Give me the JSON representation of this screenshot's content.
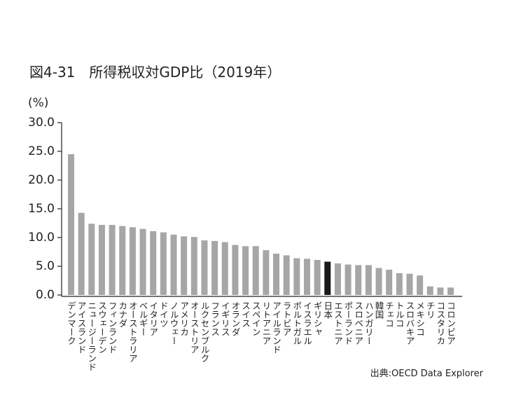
{
  "chart_data": {
    "type": "bar",
    "title": "図4-31　所得税収対GDP比（2019年）",
    "y_label": "(%)",
    "source": "出典:OECD Data Explorer",
    "categories": [
      "デンマーク",
      "アイスランド",
      "ニュージーランド",
      "スウェーデン",
      "フィンランド",
      "カナダ",
      "オーストラリア",
      "ベルギー",
      "イタリア",
      "ドイツ",
      "ノルウェー",
      "アメリカ",
      "オーストリア",
      "ルクセンブルク",
      "フランス",
      "イギリス",
      "オランダ",
      "スイス",
      "スペイン",
      "リトアニア",
      "アイルランド",
      "ラトビア",
      "ポルトガル",
      "イスラエル",
      "ギリシャ",
      "日本",
      "エストニア",
      "ポーランド",
      "スロベニア",
      "ハンガリー",
      "韓国",
      "チェコ",
      "トルコ",
      "スロバキア",
      "メキシコ",
      "チリ",
      "コスタリカ",
      "コロンビア"
    ],
    "values": [
      24.5,
      14.3,
      12.4,
      12.2,
      12.2,
      12.0,
      11.8,
      11.5,
      11.1,
      10.9,
      10.5,
      10.2,
      10.1,
      9.5,
      9.4,
      9.2,
      8.7,
      8.5,
      8.5,
      7.8,
      7.2,
      6.9,
      6.4,
      6.3,
      6.1,
      5.8,
      5.5,
      5.3,
      5.2,
      5.2,
      4.7,
      4.4,
      3.8,
      3.7,
      3.4,
      1.5,
      1.3,
      1.3
    ],
    "colors": [
      "#a6a6a6",
      "#a6a6a6",
      "#a6a6a6",
      "#a6a6a6",
      "#a6a6a6",
      "#a6a6a6",
      "#a6a6a6",
      "#a6a6a6",
      "#a6a6a6",
      "#a6a6a6",
      "#a6a6a6",
      "#a6a6a6",
      "#a6a6a6",
      "#a6a6a6",
      "#a6a6a6",
      "#a6a6a6",
      "#a6a6a6",
      "#a6a6a6",
      "#a6a6a6",
      "#a6a6a6",
      "#a6a6a6",
      "#a6a6a6",
      "#a6a6a6",
      "#a6a6a6",
      "#a6a6a6",
      "#1a1a1a",
      "#a6a6a6",
      "#a6a6a6",
      "#a6a6a6",
      "#a6a6a6",
      "#a6a6a6",
      "#a6a6a6",
      "#a6a6a6",
      "#a6a6a6",
      "#a6a6a6",
      "#a6a6a6",
      "#a6a6a6",
      "#a6a6a6"
    ],
    "ylim": [
      0,
      30
    ],
    "yticks": [
      {
        "value": 0,
        "label": "0.0"
      },
      {
        "value": 5,
        "label": "5.0"
      },
      {
        "value": 10,
        "label": "10.0"
      },
      {
        "value": 15,
        "label": "15.0"
      },
      {
        "value": 20,
        "label": "20.0"
      },
      {
        "value": 25,
        "label": "25.0"
      },
      {
        "value": 30,
        "label": "30.0"
      }
    ],
    "grid": false
  }
}
